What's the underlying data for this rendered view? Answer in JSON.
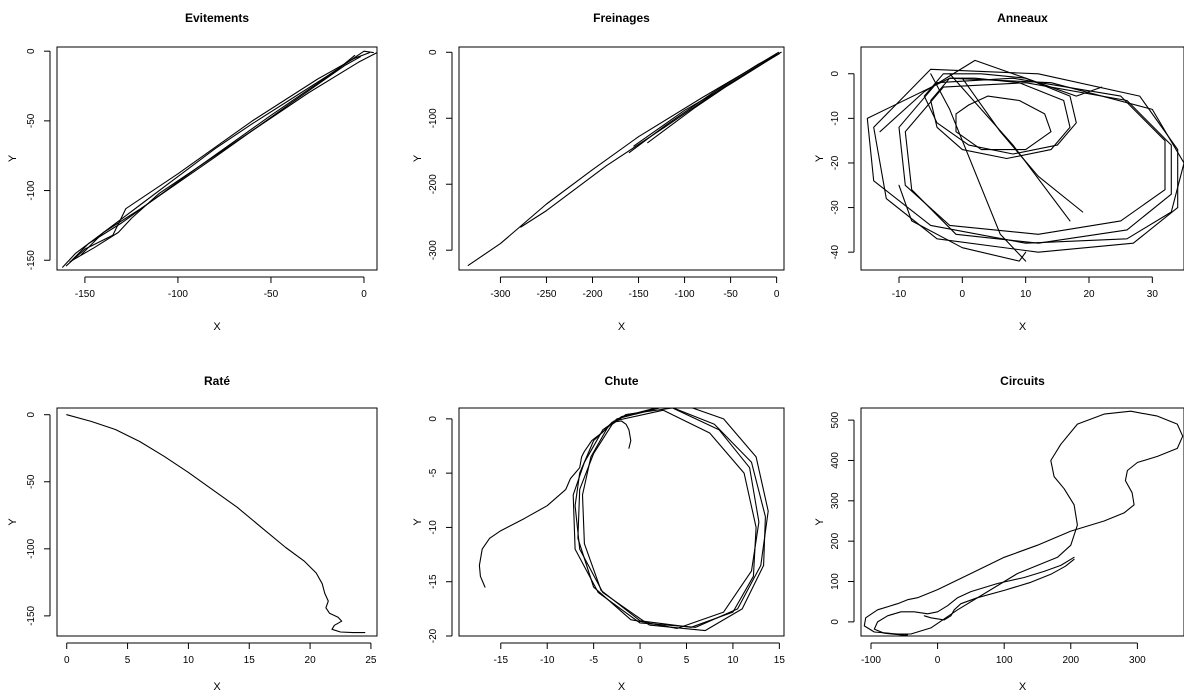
{
  "chart_data": [
    {
      "type": "line",
      "title": "Evitements",
      "xlabel": "X",
      "ylabel": "Y",
      "xlim": [
        -165,
        7
      ],
      "ylim": [
        -157,
        3
      ],
      "xticks": [
        -150,
        -100,
        -50,
        0
      ],
      "yticks": [
        -150,
        -100,
        -50,
        0
      ],
      "series": [
        {
          "x": [
            5,
            0,
            -20,
            -40,
            -60,
            -80,
            -100,
            -120,
            -140,
            -155,
            -162
          ],
          "y": [
            -1,
            0,
            -18,
            -35,
            -52,
            -70,
            -90,
            -110,
            -130,
            -145,
            -155
          ]
        },
        {
          "x": [
            3,
            -5,
            -25,
            -60,
            -100,
            -128,
            -135,
            -150,
            -160
          ],
          "y": [
            -1,
            -5,
            -20,
            -50,
            -88,
            -113,
            -132,
            -142,
            -154
          ]
        },
        {
          "x": [
            7,
            -3,
            -30,
            -70,
            -110,
            -125,
            -132,
            -145,
            -158
          ],
          "y": [
            -1,
            -8,
            -30,
            -66,
            -102,
            -120,
            -130,
            -141,
            -151
          ]
        },
        {
          "x": [
            -2,
            -10,
            -40,
            -80,
            -120,
            -140,
            -152
          ],
          "y": [
            -4,
            -10,
            -38,
            -76,
            -113,
            -130,
            -146
          ]
        },
        {
          "x": [
            -5,
            -15,
            -50,
            -90,
            -130,
            -148,
            -157
          ],
          "y": [
            -3,
            -14,
            -46,
            -84,
            -123,
            -138,
            -150
          ]
        }
      ]
    },
    {
      "type": "line",
      "title": "Freinages",
      "xlabel": "X",
      "ylabel": "Y",
      "xlim": [
        -345,
        8
      ],
      "ylim": [
        -330,
        8
      ],
      "xticks": [
        -300,
        -250,
        -200,
        -150,
        -100,
        -50,
        0
      ],
      "yticks": [
        -300,
        -200,
        -100,
        0
      ],
      "series": [
        {
          "x": [
            2,
            -30,
            -80,
            -150,
            -200,
            -250,
            -300,
            -335
          ],
          "y": [
            0,
            -27,
            -68,
            -128,
            -178,
            -230,
            -290,
            -323
          ]
        },
        {
          "x": [
            0,
            -60,
            -120,
            -185,
            -250,
            -278
          ],
          "y": [
            -3,
            -55,
            -112,
            -172,
            -240,
            -265
          ]
        },
        {
          "x": [
            -2,
            -50,
            -100,
            -155
          ],
          "y": [
            -6,
            -48,
            -88,
            -142
          ]
        },
        {
          "x": [
            3,
            -40,
            -90,
            -140
          ],
          "y": [
            -2,
            -38,
            -85,
            -137
          ]
        },
        {
          "x": [
            5,
            -20,
            -70,
            -120,
            -160
          ],
          "y": [
            0,
            -18,
            -62,
            -110,
            -152
          ]
        }
      ]
    },
    {
      "type": "line",
      "title": "Anneaux",
      "xlabel": "X",
      "ylabel": "Y",
      "xlim": [
        -16,
        35
      ],
      "ylim": [
        -44,
        6
      ],
      "xticks": [
        -10,
        0,
        10,
        20,
        30
      ],
      "yticks": [
        -40,
        -30,
        -20,
        -10,
        0
      ],
      "series": [
        {
          "x": [
            3,
            10,
            17,
            18,
            15,
            8,
            1,
            -4,
            -6,
            -3,
            3
          ],
          "y": [
            0,
            -1,
            -5,
            -11,
            -16,
            -18,
            -16,
            -11,
            -5,
            0,
            0
          ]
        },
        {
          "x": [
            2,
            9,
            16,
            17,
            14,
            7,
            0,
            -4,
            -5,
            -2,
            2
          ],
          "y": [
            -1,
            -2,
            -6,
            -12,
            -17,
            -19,
            -17,
            -12,
            -6,
            -1,
            -1
          ]
        },
        {
          "x": [
            -4,
            8,
            25,
            32,
            32,
            25,
            12,
            -2,
            -9,
            -10,
            -4
          ],
          "y": [
            -2,
            -1,
            -5,
            -15,
            -26,
            -33,
            -36,
            -34,
            -25,
            -12,
            -2
          ]
        },
        {
          "x": [
            -3,
            10,
            26,
            33,
            33,
            26,
            12,
            -1,
            -8,
            -9,
            -3
          ],
          "y": [
            -3,
            -2,
            -6,
            -16,
            -27,
            -35,
            -38,
            -36,
            -26,
            -13,
            -3
          ]
        },
        {
          "x": [
            -5,
            12,
            28,
            34,
            34,
            27,
            12,
            -4,
            -12,
            -14,
            -5
          ],
          "y": [
            1,
            0,
            -5,
            -17,
            -30,
            -38,
            -40,
            -37,
            -28,
            -12,
            1
          ]
        },
        {
          "x": [
            -2,
            14,
            30,
            35,
            33,
            26,
            10,
            -5,
            -14,
            -15,
            -2
          ],
          "y": [
            -1,
            -2,
            -8,
            -20,
            -31,
            -37,
            -38,
            -34,
            -24,
            -10,
            -1
          ]
        },
        {
          "x": [
            -13,
            -6,
            2,
            10,
            18,
            22
          ],
          "y": [
            -13,
            -4,
            3,
            -1,
            -5,
            -3
          ]
        },
        {
          "x": [
            -5,
            -2,
            2,
            6,
            10
          ],
          "y": [
            0,
            -8,
            -22,
            -36,
            -42
          ]
        },
        {
          "x": [
            -2,
            8,
            17
          ],
          "y": [
            0,
            -16,
            -33
          ]
        },
        {
          "x": [
            0,
            6,
            12,
            19
          ],
          "y": [
            -1,
            -13,
            -23,
            -31
          ]
        },
        {
          "x": [
            -10,
            -8,
            0,
            9,
            10
          ],
          "y": [
            -25,
            -33,
            -39,
            -42,
            -40
          ]
        },
        {
          "x": [
            1,
            4,
            9,
            13,
            14,
            10,
            3,
            -1,
            -1,
            1
          ],
          "y": [
            -7,
            -5,
            -6,
            -9,
            -13,
            -17,
            -17,
            -13,
            -9,
            -7
          ]
        }
      ]
    },
    {
      "type": "line",
      "title": "Raté",
      "xlabel": "X",
      "ylabel": "Y",
      "xlim": [
        -0.8,
        25.5
      ],
      "ylim": [
        -165,
        5
      ],
      "xticks": [
        0,
        5,
        10,
        15,
        20,
        25
      ],
      "yticks": [
        -150,
        -100,
        -50,
        0
      ],
      "series": [
        {
          "x": [
            0,
            2,
            4,
            6,
            8,
            10,
            12,
            14,
            16,
            18,
            19.5,
            20.5,
            21,
            21.2,
            21.5,
            21.3,
            21.6,
            22.3,
            22.6,
            22,
            21.8,
            22.5,
            23.5,
            24.5
          ],
          "y": [
            0,
            -5,
            -11,
            -20,
            -31,
            -43,
            -56,
            -69,
            -84,
            -99,
            -109,
            -118,
            -126,
            -133,
            -139,
            -144,
            -148,
            -151,
            -154,
            -157,
            -160,
            -162,
            -162.5,
            -162.5
          ]
        }
      ]
    },
    {
      "type": "line",
      "title": "Chute",
      "xlabel": "X",
      "ylabel": "Y",
      "xlim": [
        -19.5,
        15.5
      ],
      "ylim": [
        -20,
        1
      ],
      "xticks": [
        -15,
        -10,
        -5,
        0,
        5,
        10,
        15
      ],
      "yticks": [
        -20,
        -15,
        -10,
        -5,
        0
      ],
      "series": [
        {
          "x": [
            -16.7,
            -17.2,
            -17.3,
            -17,
            -16.2,
            -15,
            -12.5,
            -10,
            -8,
            -7.5,
            -7,
            -6.5,
            -6.3,
            -6,
            -5.2,
            -4,
            -3,
            -2,
            -1.5,
            -1.2,
            -1,
            -1.2
          ],
          "y": [
            -15.5,
            -14.5,
            -13.5,
            -12,
            -11,
            -10.3,
            -9.2,
            -8,
            -6.5,
            -5.5,
            -5,
            -4.5,
            -3.5,
            -3,
            -2,
            -1.2,
            -0.3,
            -0.2,
            -0.5,
            -1,
            -2,
            -2.7
          ]
        },
        {
          "x": [
            -2.5,
            3,
            8,
            12,
            13.5,
            13.3,
            11,
            7,
            1,
            -4,
            -6.5,
            -7,
            -6.5,
            -5,
            -2.5
          ],
          "y": [
            0,
            1.2,
            -0.5,
            -4,
            -9,
            -13.5,
            -17.5,
            -19.5,
            -19,
            -16,
            -12,
            -8,
            -5,
            -2,
            0
          ]
        },
        {
          "x": [
            -2,
            4,
            9,
            12.5,
            13.8,
            13,
            10.5,
            6,
            0,
            -4.5,
            -7,
            -7.2,
            -6,
            -4,
            -2
          ],
          "y": [
            0.2,
            1.5,
            0,
            -3.5,
            -8.5,
            -13.5,
            -17.5,
            -19.2,
            -18.8,
            -16,
            -12,
            -7,
            -4,
            -1,
            0.2
          ]
        },
        {
          "x": [
            -1.5,
            3.5,
            8.5,
            11.8,
            12.8,
            12,
            9,
            4,
            -1,
            -5,
            -6.7,
            -6.5,
            -5,
            -3,
            -1.5
          ],
          "y": [
            0.4,
            1,
            -1,
            -4.5,
            -9.5,
            -14,
            -17.8,
            -19.3,
            -18.5,
            -15.5,
            -11,
            -6.5,
            -3.2,
            -0.5,
            0.4
          ]
        },
        {
          "x": [
            -2.8,
            2.5,
            7.5,
            11.2,
            12.5,
            12.2,
            10,
            5.5,
            0,
            -4.2,
            -6,
            -6.2,
            -5.3,
            -3.5,
            -2.8
          ],
          "y": [
            -0.2,
            0.8,
            -1.3,
            -5,
            -10,
            -14.5,
            -17.8,
            -19.2,
            -18.6,
            -15.8,
            -11.5,
            -7,
            -3.5,
            -0.8,
            -0.2
          ]
        }
      ]
    },
    {
      "type": "line",
      "title": "Circuits",
      "xlabel": "X",
      "ylabel": "Y",
      "xlim": [
        -115,
        370
      ],
      "ylim": [
        -35,
        530
      ],
      "xticks": [
        -100,
        0,
        100,
        200,
        300
      ],
      "yticks": [
        0,
        100,
        200,
        300,
        400,
        500
      ],
      "series": [
        {
          "x": [
            -60,
            -40,
            -10,
            30,
            80,
            120,
            150,
            180,
            200,
            210,
            205,
            190,
            175,
            170,
            185,
            210,
            250,
            290,
            330,
            360,
            368,
            360,
            330,
            300,
            285,
            282,
            292,
            295,
            280,
            250,
            200,
            150,
            100,
            50,
            0,
            -30,
            -45,
            -60,
            -90,
            -108,
            -110,
            -95,
            -60
          ],
          "y": [
            -30,
            -30,
            -15,
            30,
            80,
            120,
            140,
            160,
            190,
            240,
            290,
            330,
            360,
            400,
            440,
            490,
            515,
            522,
            510,
            490,
            460,
            430,
            410,
            395,
            375,
            350,
            320,
            290,
            270,
            250,
            225,
            190,
            160,
            120,
            80,
            60,
            55,
            45,
            30,
            10,
            -10,
            -25,
            -30
          ]
        },
        {
          "x": [
            -45,
            -50,
            -80,
            -95,
            -90,
            -75,
            -55,
            -35,
            -15,
            0,
            15,
            30,
            50,
            90,
            130,
            160,
            185,
            205
          ],
          "y": [
            -32,
            -33,
            -28,
            -18,
            0,
            15,
            25,
            25,
            20,
            25,
            40,
            60,
            75,
            95,
            110,
            125,
            140,
            160
          ]
        },
        {
          "x": [
            -20,
            -10,
            10,
            20,
            25,
            35,
            60,
            100,
            140,
            170,
            192,
            205
          ],
          "y": [
            15,
            10,
            5,
            15,
            30,
            45,
            60,
            78,
            98,
            118,
            138,
            155
          ]
        }
      ]
    }
  ]
}
